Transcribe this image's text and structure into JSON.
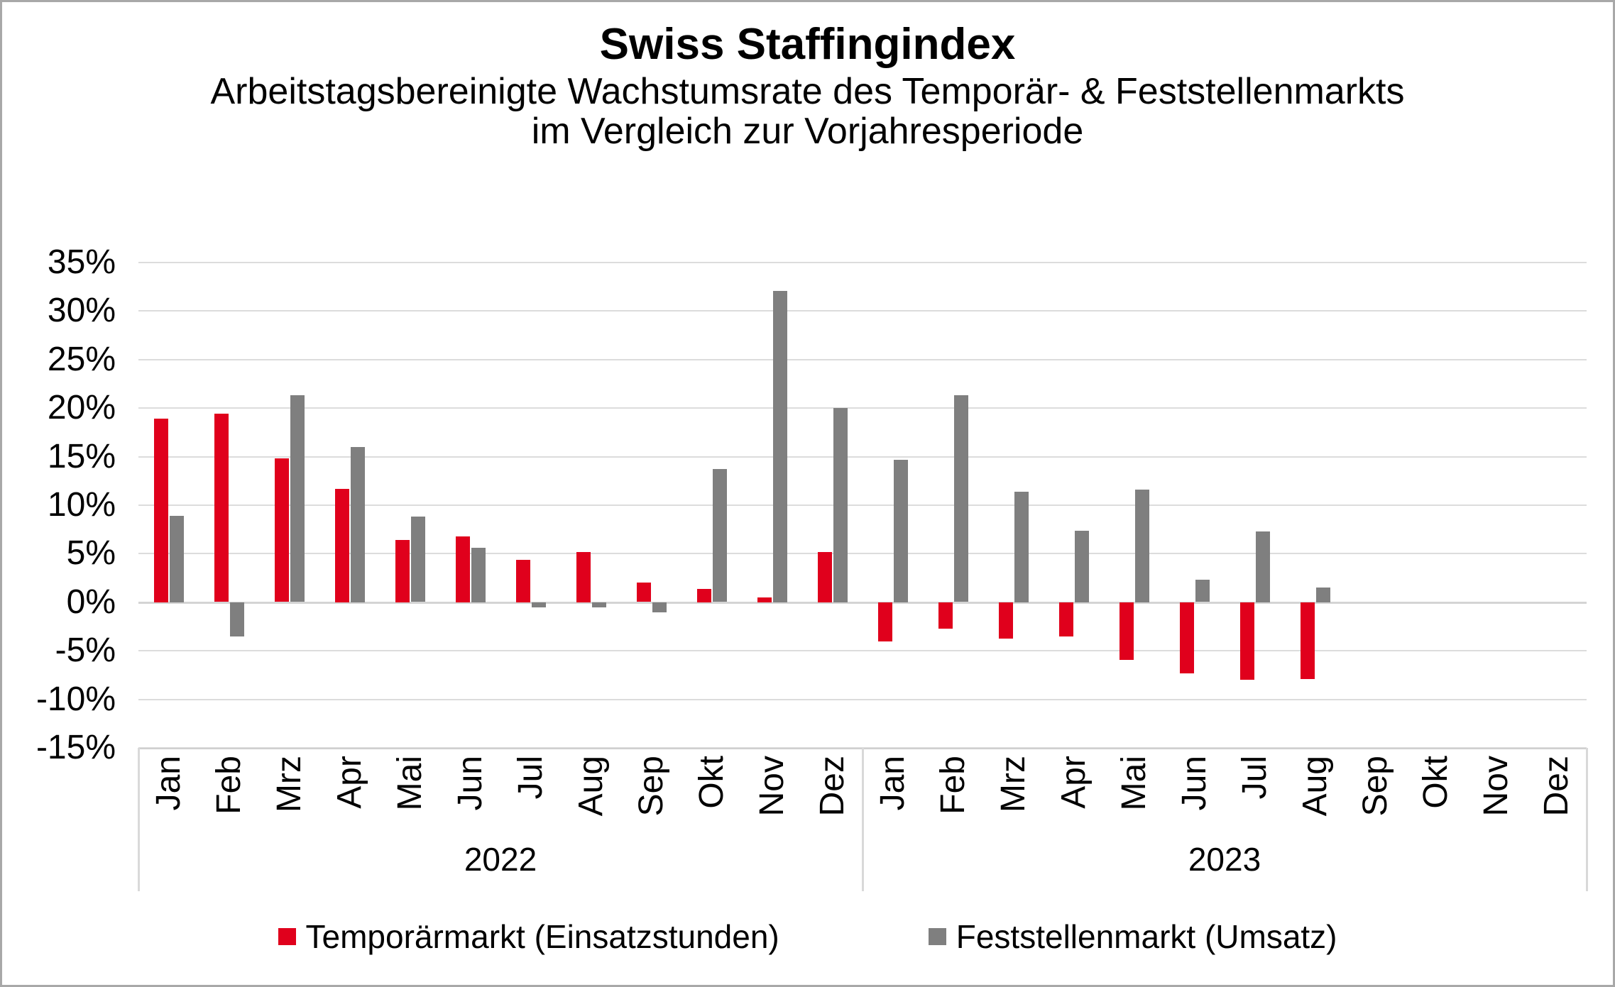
{
  "chart_data": {
    "type": "bar",
    "title": "Swiss Staffingindex",
    "subtitle_line1": "Arbeitstagsbereinigte Wachstumsrate des Temporär- & Feststellenmarkts",
    "subtitle_line2": "im Vergleich zur Vorjahresperiode",
    "ylim": [
      -15,
      35
    ],
    "ytick_step": 5,
    "ytick_suffix": "%",
    "grid": true,
    "legend_position": "bottom",
    "year_groups": [
      {
        "year": "2022",
        "months": [
          "Jan",
          "Feb",
          "Mrz",
          "Apr",
          "Mai",
          "Jun",
          "Jul",
          "Aug",
          "Sep",
          "Okt",
          "Nov",
          "Dez"
        ]
      },
      {
        "year": "2023",
        "months": [
          "Jan",
          "Feb",
          "Mrz",
          "Apr",
          "Mai",
          "Jun",
          "Jul",
          "Aug",
          "Sep",
          "Okt",
          "Nov",
          "Dez"
        ]
      }
    ],
    "series": [
      {
        "name": "Temporärmarkt (Einsatzstunden)",
        "color": "#e0001c",
        "values": [
          18.9,
          19.4,
          14.8,
          11.7,
          6.4,
          6.8,
          4.4,
          5.2,
          2.0,
          1.4,
          0.5,
          5.2,
          -4.0,
          -2.7,
          -3.7,
          -3.5,
          -5.9,
          -7.3,
          -8.0,
          -7.9,
          null,
          null,
          null,
          null
        ]
      },
      {
        "name": "Feststellenmarkt (Umsatz)",
        "color": "#7f7f7f",
        "values": [
          8.9,
          -3.5,
          21.3,
          16.0,
          8.8,
          5.6,
          -0.5,
          -0.5,
          -1.0,
          13.7,
          32.1,
          20.0,
          14.7,
          21.3,
          11.4,
          7.4,
          11.6,
          2.3,
          7.3,
          1.5,
          null,
          null,
          null,
          null
        ]
      }
    ],
    "colors": {
      "gridline": "#dcdcdc",
      "separator": "#d9d9d9",
      "axis_text": "#000000",
      "background": "#ffffff",
      "border": "#a8a8a8"
    }
  }
}
